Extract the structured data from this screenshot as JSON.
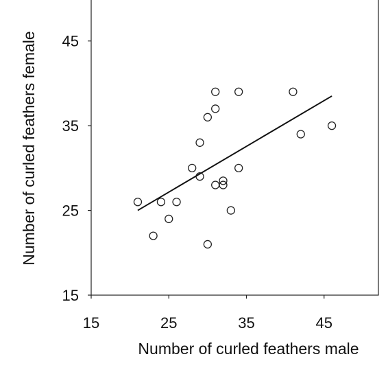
{
  "chart_data": {
    "type": "scatter",
    "title": "",
    "xlabel": "Number of curled feathers male",
    "ylabel": "Number of curled feathers female",
    "xlim": [
      15,
      52
    ],
    "ylim": [
      15,
      50
    ],
    "x_ticks": [
      "15",
      "25",
      "35",
      "45"
    ],
    "y_ticks": [
      "15",
      "25",
      "35",
      "45"
    ],
    "grid": false,
    "series": [
      {
        "points": [
          {
            "x": 21,
            "y": 26
          },
          {
            "x": 23,
            "y": 22
          },
          {
            "x": 24,
            "y": 26
          },
          {
            "x": 25,
            "y": 24
          },
          {
            "x": 26,
            "y": 26
          },
          {
            "x": 28,
            "y": 30
          },
          {
            "x": 29,
            "y": 33
          },
          {
            "x": 29,
            "y": 29
          },
          {
            "x": 30,
            "y": 36
          },
          {
            "x": 30,
            "y": 21
          },
          {
            "x": 31,
            "y": 39
          },
          {
            "x": 31,
            "y": 37
          },
          {
            "x": 31,
            "y": 28
          },
          {
            "x": 32,
            "y": 28
          },
          {
            "x": 32,
            "y": 28.5
          },
          {
            "x": 33,
            "y": 25
          },
          {
            "x": 34,
            "y": 39
          },
          {
            "x": 34,
            "y": 30
          },
          {
            "x": 41,
            "y": 39
          },
          {
            "x": 42,
            "y": 34
          },
          {
            "x": 46,
            "y": 35
          }
        ]
      }
    ],
    "fit_line": {
      "x1": 21,
      "y1": 25,
      "x2": 46,
      "y2": 38.5
    }
  }
}
